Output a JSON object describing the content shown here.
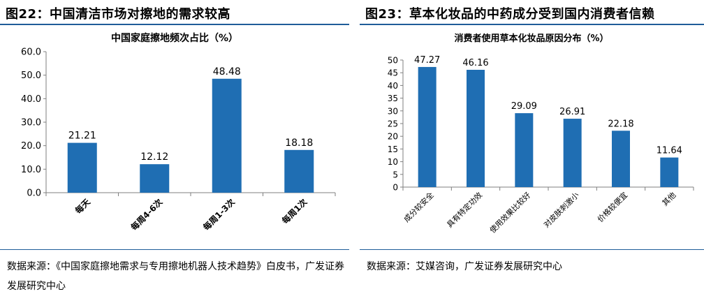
{
  "left": {
    "figure_title": "图22：中国清洁市场对擦地的需求较高",
    "source": "数据来源：《中国家庭擦地需求与专用擦地机器人技术趋势》白皮书，广发证券发展研究中心",
    "colors": {
      "bar": "#1f6eb3",
      "rule": "#1f5d99"
    }
  },
  "right": {
    "figure_title": "图23：草本化妆品的中药成分受到国内消费者信赖",
    "source": "数据来源：艾媒咨询，广发证券发展研究中心",
    "colors": {
      "bar": "#1f6eb3",
      "rule": "#1f5d99"
    }
  },
  "chart_data": [
    {
      "type": "bar",
      "title": "中国家庭擦地频次占比（%）",
      "categories": [
        "每天",
        "每周4-6次",
        "每周1-3次",
        "每周1次"
      ],
      "values": [
        21.21,
        12.12,
        48.48,
        18.18
      ],
      "value_labels": [
        "21.21",
        "12.12",
        "48.48",
        "18.18"
      ],
      "yticks": [
        "0.0",
        "10.0",
        "20.0",
        "30.0",
        "40.0",
        "50.0",
        "60.0"
      ],
      "ylim": [
        0,
        60
      ],
      "xlabel": "",
      "ylabel": ""
    },
    {
      "type": "bar",
      "title": "消费者使用草本化妆品原因分布（%）",
      "categories": [
        "成分较安全",
        "具有特定功效",
        "使用效果比较好",
        "对皮肤刺激小",
        "价格较便宜",
        "其他"
      ],
      "values": [
        47.27,
        46.16,
        29.09,
        26.91,
        22.18,
        11.64
      ],
      "value_labels": [
        "47.27",
        "46.16",
        "29.09",
        "26.91",
        "22.18",
        "11.64"
      ],
      "yticks": [
        "0",
        "5",
        "10",
        "15",
        "20",
        "25",
        "30",
        "35",
        "40",
        "45",
        "50"
      ],
      "ylim": [
        0,
        50
      ],
      "xlabel": "",
      "ylabel": ""
    }
  ]
}
